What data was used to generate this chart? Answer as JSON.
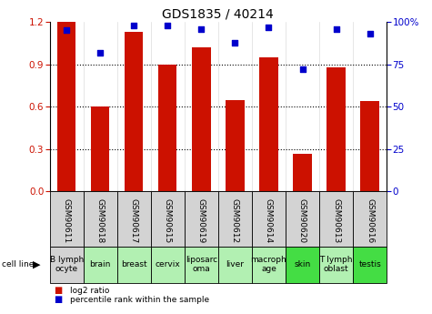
{
  "title": "GDS1835 / 40214",
  "samples": [
    "GSM90611",
    "GSM90618",
    "GSM90617",
    "GSM90615",
    "GSM90619",
    "GSM90612",
    "GSM90614",
    "GSM90620",
    "GSM90613",
    "GSM90616"
  ],
  "cell_lines": [
    "B lymph\nocyte",
    "brain",
    "breast",
    "cervix",
    "liposarc\noma",
    "liver",
    "macroph\nage",
    "skin",
    "T lymph\noblast",
    "testis"
  ],
  "cell_bg_colors": [
    "#d3d3d3",
    "#b2f0b2",
    "#b2f0b2",
    "#b2f0b2",
    "#b2f0b2",
    "#b2f0b2",
    "#b2f0b2",
    "#44dd44",
    "#b2f0b2",
    "#44dd44"
  ],
  "log2_ratio": [
    1.2,
    0.6,
    1.13,
    0.9,
    1.02,
    0.65,
    0.95,
    0.27,
    0.88,
    0.64
  ],
  "percentile_rank": [
    95,
    82,
    98,
    98,
    96,
    88,
    97,
    72,
    96,
    93
  ],
  "ylim_left": [
    0,
    1.2
  ],
  "ylim_right": [
    0,
    100
  ],
  "yticks_left": [
    0,
    0.3,
    0.6,
    0.9,
    1.2
  ],
  "yticks_right": [
    0,
    25,
    50,
    75,
    100
  ],
  "bar_color": "#cc1100",
  "dot_color": "#0000cc",
  "sample_bg_color": "#d3d3d3",
  "legend_bar_label": "log2 ratio",
  "legend_dot_label": "percentile rank within the sample",
  "cell_line_label": "cell line",
  "title_fontsize": 10,
  "tick_fontsize": 7.5,
  "table_fontsize": 6.5
}
